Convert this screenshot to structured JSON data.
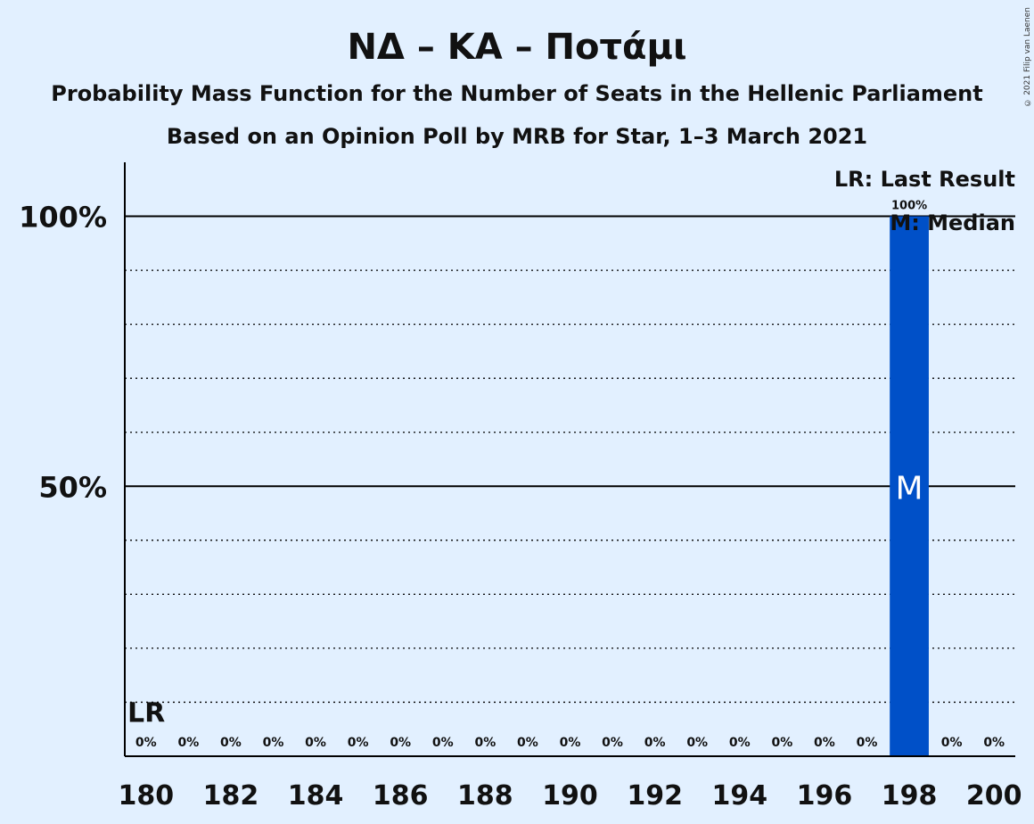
{
  "chart_data": {
    "type": "bar",
    "title": "ΝΔ – ΚΑ – Ποτάμι",
    "subtitle1": "Probability Mass Function for the Number of Seats in the Hellenic Parliament",
    "subtitle2": "Based on an Opinion Poll by MRB for Star, 1–3 March 2021",
    "x": [
      180,
      181,
      182,
      183,
      184,
      185,
      186,
      187,
      188,
      189,
      190,
      191,
      192,
      193,
      194,
      195,
      196,
      197,
      198,
      199,
      200
    ],
    "values": [
      0,
      0,
      0,
      0,
      0,
      0,
      0,
      0,
      0,
      0,
      0,
      0,
      0,
      0,
      0,
      0,
      0,
      0,
      100,
      0,
      0
    ],
    "value_labels": [
      "0%",
      "0%",
      "0%",
      "0%",
      "0%",
      "0%",
      "0%",
      "0%",
      "0%",
      "0%",
      "0%",
      "0%",
      "0%",
      "0%",
      "0%",
      "0%",
      "0%",
      "0%",
      "100%",
      "0%",
      "0%"
    ],
    "x_tick_labels": [
      "180",
      "182",
      "184",
      "186",
      "188",
      "190",
      "192",
      "194",
      "196",
      "198",
      "200"
    ],
    "y_tick_labels": [
      "50%",
      "100%"
    ],
    "ylim": [
      0,
      110
    ],
    "last_result_seat": 180,
    "median_seat": 198,
    "last_result_marker": "LR",
    "median_marker": "M",
    "legend": {
      "last_result": "LR: Last Result",
      "median": "M: Median"
    },
    "colors": {
      "bar": "#0050c8",
      "background": "#e2f0ff"
    },
    "grid": "dotted every 10%, solid at 50% and 100%",
    "legend_placement": "top-right"
  },
  "copyright": "© 2021 Filip van Laenen"
}
